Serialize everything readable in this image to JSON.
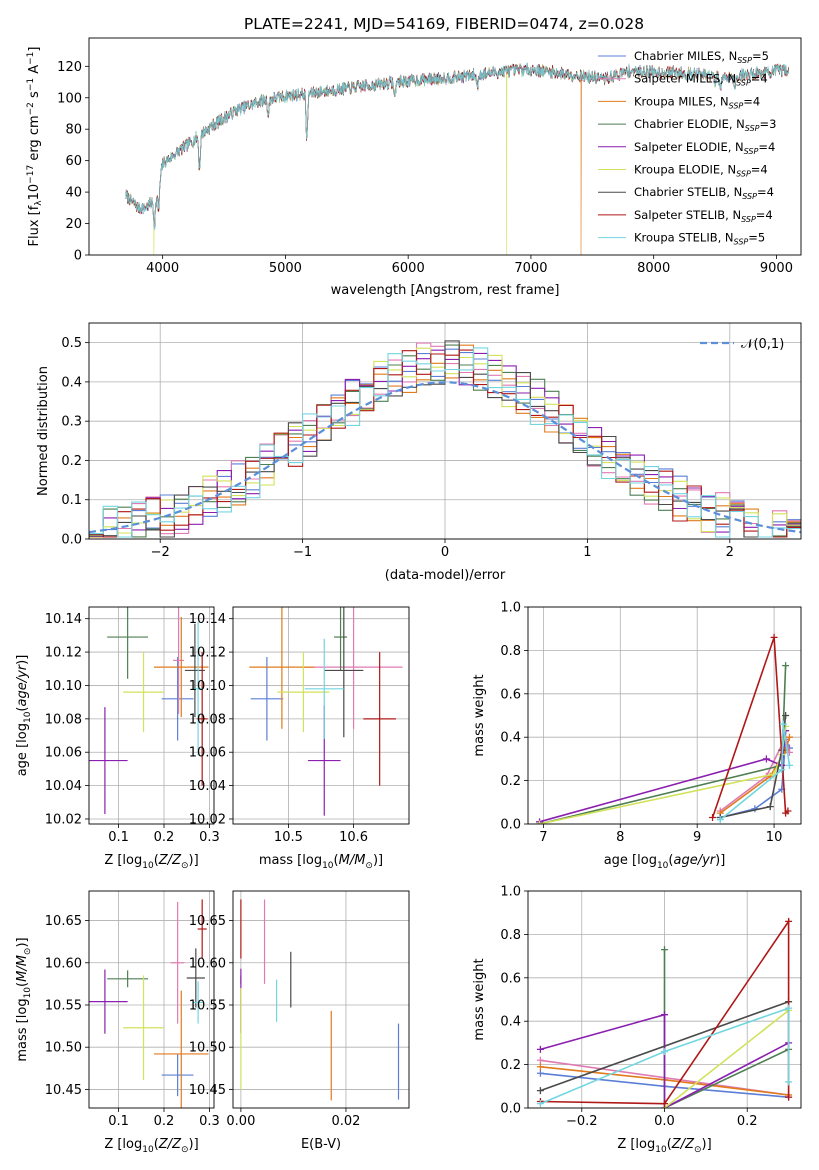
{
  "figure_title": "PLATE=2241, MJD=54169, FIBERID=0474, z=0.028",
  "models": [
    {
      "name": "Chabrier MILES",
      "n_ssp": 5,
      "color": "#5b7fd6"
    },
    {
      "name": "Salpeter MILES",
      "n_ssp": 4,
      "color": "#e07ab2"
    },
    {
      "name": "Kroupa MILES",
      "n_ssp": 4,
      "color": "#e07b1e"
    },
    {
      "name": "Chabrier ELODIE",
      "n_ssp": 3,
      "color": "#4e7f52"
    },
    {
      "name": "Salpeter ELODIE",
      "n_ssp": 4,
      "color": "#8b1fb0"
    },
    {
      "name": "Kroupa ELODIE",
      "n_ssp": 4,
      "color": "#d2e25a"
    },
    {
      "name": "Chabrier STELIB",
      "n_ssp": 4,
      "color": "#4a4a4a"
    },
    {
      "name": "Salpeter STELIB",
      "n_ssp": 4,
      "color": "#b01818"
    },
    {
      "name": "Kroupa STELIB",
      "n_ssp": 5,
      "color": "#72d6e0"
    }
  ],
  "chart_data": [
    {
      "id": "spectrum",
      "type": "line",
      "xlabel": "wavelength [Angstrom, rest frame]",
      "ylabel": "Flux [f_λ10^-17 erg cm^-2 s^-1 A^-1]",
      "xlim": [
        3400,
        9200
      ],
      "ylim": [
        0,
        138
      ],
      "xticks": [
        4000,
        5000,
        6000,
        7000,
        8000,
        9000
      ],
      "yticks": [
        0,
        20,
        40,
        60,
        80,
        100,
        120
      ],
      "grid": false,
      "legend": "upper right",
      "x_range": [
        3700,
        9100
      ],
      "continuum": [
        [
          3700,
          38
        ],
        [
          3800,
          30
        ],
        [
          3850,
          30
        ],
        [
          3950,
          35
        ],
        [
          4000,
          58
        ],
        [
          4200,
          70
        ],
        [
          4400,
          82
        ],
        [
          4600,
          92
        ],
        [
          4800,
          98
        ],
        [
          5000,
          101
        ],
        [
          5200,
          103
        ],
        [
          5500,
          106
        ],
        [
          5900,
          110
        ],
        [
          6200,
          112
        ],
        [
          6500,
          114
        ],
        [
          6800,
          117
        ],
        [
          7000,
          118
        ],
        [
          7200,
          116
        ],
        [
          7400,
          114
        ],
        [
          7600,
          112
        ],
        [
          7800,
          117
        ],
        [
          8200,
          116
        ],
        [
          8600,
          113
        ],
        [
          9100,
          118
        ]
      ],
      "absorption_features": [
        [
          3933,
          15
        ],
        [
          3968,
          14
        ],
        [
          4300,
          22
        ],
        [
          4861,
          10
        ],
        [
          5175,
          30
        ],
        [
          5890,
          10
        ],
        [
          6563,
          8
        ],
        [
          8500,
          6
        ],
        [
          8542,
          8
        ],
        [
          8662,
          7
        ]
      ],
      "noise_amplitude": 3.5,
      "dropouts": [
        {
          "model": "Kroupa ELODIE",
          "x": 3930
        },
        {
          "model": "Kroupa ELODIE",
          "x": 6800
        },
        {
          "model": "Kroupa MILES",
          "x": 7410
        }
      ]
    },
    {
      "id": "residuals",
      "type": "histogram",
      "xlabel": "(data-model)/error",
      "ylabel": "Normed distribution",
      "xlim": [
        -2.5,
        2.5
      ],
      "ylim": [
        0,
        0.55
      ],
      "xticks": [
        -2,
        -1,
        0,
        1,
        2
      ],
      "yticks": [
        0,
        0.1,
        0.2,
        0.3,
        0.4,
        0.5
      ],
      "grid": true,
      "reference_curve": {
        "name": "𝒩(0,1)",
        "mean": 0,
        "sigma": 1
      },
      "bin_width": 0.1,
      "jitter": 0.06
    },
    {
      "id": "age_vs_Z",
      "type": "errorbar",
      "xlabel": "Z [log10(Z/Z⊙)]",
      "ylabel": "age  [log10(age/yr)]",
      "xlim": [
        0.035,
        0.31
      ],
      "ylim": [
        10.017,
        10.147
      ],
      "xticks": [
        0.1,
        0.2,
        0.3
      ],
      "yticks": [
        10.02,
        10.04,
        10.06,
        10.08,
        10.1,
        10.12,
        10.14
      ],
      "grid": true,
      "points": [
        {
          "x": 0.23,
          "xerr": 0.035,
          "y": 10.092,
          "yerr": 0.025
        },
        {
          "x": 0.232,
          "xerr": 0.012,
          "y": 10.115,
          "yerr": 0.032
        },
        {
          "x": 0.238,
          "xerr": 0.06,
          "y": 10.111,
          "yerr": 0.03
        },
        {
          "x": 0.12,
          "xerr": 0.045,
          "y": 10.129,
          "yerr": 0.025
        },
        {
          "x": 0.07,
          "xerr": 0.05,
          "y": 10.055,
          "yerr": 0.032
        },
        {
          "x": 0.155,
          "xerr": 0.045,
          "y": 10.096,
          "yerr": 0.024
        },
        {
          "x": 0.268,
          "xerr": 0.022,
          "y": 10.109,
          "yerr": 0.028
        },
        {
          "x": 0.284,
          "xerr": 0.012,
          "y": 10.08,
          "yerr": 0.04
        },
        {
          "x": 0.275,
          "xerr": 0.01,
          "y": 10.098,
          "yerr": 0.04
        }
      ]
    },
    {
      "id": "age_vs_mass",
      "type": "errorbar",
      "xlabel": "mass [log10(M/M⊙)]",
      "ylabel": "",
      "xlim": [
        10.415,
        10.685
      ],
      "ylim": [
        10.017,
        10.147
      ],
      "xticks": [
        10.5,
        10.6
      ],
      "yticks": [
        10.02,
        10.04,
        10.06,
        10.08,
        10.1,
        10.12,
        10.14
      ],
      "grid": true,
      "points": [
        {
          "x": 10.467,
          "xerr": 0.025,
          "y": 10.092,
          "yerr": 0.025
        },
        {
          "x": 10.6,
          "xerr": 0.075,
          "y": 10.111,
          "yerr": 0.037
        },
        {
          "x": 10.49,
          "xerr": 0.05,
          "y": 10.111,
          "yerr": 0.037
        },
        {
          "x": 10.58,
          "xerr": 0.01,
          "y": 10.129,
          "yerr": 0.02
        },
        {
          "x": 10.555,
          "xerr": 0.025,
          "y": 10.055,
          "yerr": 0.033
        },
        {
          "x": 10.523,
          "xerr": 0.04,
          "y": 10.096,
          "yerr": 0.024
        },
        {
          "x": 10.585,
          "xerr": 0.03,
          "y": 10.109,
          "yerr": 0.04
        },
        {
          "x": 10.64,
          "xerr": 0.025,
          "y": 10.08,
          "yerr": 0.04
        },
        {
          "x": 10.555,
          "xerr": 0.03,
          "y": 10.098,
          "yerr": 0.03
        }
      ]
    },
    {
      "id": "mass_weight_vs_age",
      "type": "line",
      "xlabel": "age  [log10(age/yr)]",
      "ylabel": "mass weight",
      "xlim": [
        6.8,
        10.35
      ],
      "ylim": [
        0,
        1.0
      ],
      "xticks": [
        7,
        8,
        9,
        10
      ],
      "yticks": [
        0.0,
        0.2,
        0.4,
        0.6,
        0.8,
        1.0
      ],
      "grid": true,
      "series": [
        {
          "values": [
            [
              9.3,
              0.03
            ],
            [
              9.75,
              0.07
            ],
            [
              10.1,
              0.16
            ],
            [
              10.15,
              0.39
            ],
            [
              10.2,
              0.35
            ]
          ]
        },
        {
          "values": [
            [
              9.3,
              0.06
            ],
            [
              9.9,
              0.22
            ],
            [
              10.15,
              0.4
            ],
            [
              10.2,
              0.33
            ]
          ]
        },
        {
          "values": [
            [
              9.3,
              0.05
            ],
            [
              9.95,
              0.22
            ],
            [
              10.15,
              0.34
            ],
            [
              10.2,
              0.4
            ]
          ]
        },
        {
          "values": [
            [
              6.95,
              0.0
            ],
            [
              10.1,
              0.27
            ],
            [
              10.15,
              0.73
            ]
          ]
        },
        {
          "values": [
            [
              6.95,
              0.01
            ],
            [
              9.9,
              0.3
            ],
            [
              10.1,
              0.27
            ],
            [
              10.15,
              0.43
            ]
          ]
        },
        {
          "values": [
            [
              6.95,
              0.0
            ],
            [
              10.0,
              0.23
            ],
            [
              10.1,
              0.32
            ],
            [
              10.15,
              0.45
            ]
          ]
        },
        {
          "values": [
            [
              9.3,
              0.03
            ],
            [
              9.95,
              0.08
            ],
            [
              10.1,
              0.34
            ],
            [
              10.15,
              0.5
            ]
          ]
        },
        {
          "values": [
            [
              9.2,
              0.03
            ],
            [
              10.0,
              0.86
            ],
            [
              10.15,
              0.05
            ],
            [
              10.18,
              0.06
            ]
          ]
        },
        {
          "values": [
            [
              9.3,
              0.02
            ],
            [
              10.1,
              0.25
            ],
            [
              10.12,
              0.46
            ],
            [
              10.2,
              0.27
            ]
          ]
        }
      ]
    },
    {
      "id": "mass_vs_Z",
      "type": "errorbar",
      "xlabel": "Z [log10(Z/Z⊙)]",
      "ylabel": "mass [log10(M/M⊙)]",
      "xlim": [
        0.035,
        0.31
      ],
      "ylim": [
        10.428,
        10.685
      ],
      "xticks": [
        0.1,
        0.2,
        0.3
      ],
      "yticks": [
        10.45,
        10.5,
        10.55,
        10.6,
        10.65
      ],
      "grid": true,
      "points": [
        {
          "x": 0.23,
          "xerr": 0.035,
          "y": 10.467,
          "yerr": 0.025
        },
        {
          "x": 0.23,
          "xerr": 0.015,
          "y": 10.6,
          "yerr": 0.072
        },
        {
          "x": 0.238,
          "xerr": 0.06,
          "y": 10.492,
          "yerr": 0.075
        },
        {
          "x": 0.12,
          "xerr": 0.045,
          "y": 10.581,
          "yerr": 0.01
        },
        {
          "x": 0.07,
          "xerr": 0.05,
          "y": 10.554,
          "yerr": 0.038
        },
        {
          "x": 0.155,
          "xerr": 0.045,
          "y": 10.523,
          "yerr": 0.062
        },
        {
          "x": 0.27,
          "xerr": 0.02,
          "y": 10.582,
          "yerr": 0.035
        },
        {
          "x": 0.284,
          "xerr": 0.01,
          "y": 10.64,
          "yerr": 0.035
        },
        {
          "x": 0.275,
          "xerr": 0.012,
          "y": 10.553,
          "yerr": 0.025
        }
      ]
    },
    {
      "id": "mass_vs_EBV",
      "type": "errorbar",
      "xlabel": "E(B-V)",
      "ylabel": "",
      "xlim": [
        -0.0015,
        0.032
      ],
      "ylim": [
        10.428,
        10.685
      ],
      "xticks": [
        0.0,
        0.02
      ],
      "yticks": [
        10.45,
        10.5,
        10.55,
        10.6,
        10.65
      ],
      "grid": true,
      "points": [
        {
          "x": 0.03,
          "xerr": 0,
          "y": 10.483,
          "yerr": 0.045
        },
        {
          "x": 0.0045,
          "xerr": 0,
          "y": 10.625,
          "yerr": 0.05
        },
        {
          "x": 0.0172,
          "xerr": 0,
          "y": 10.49,
          "yerr": 0.053
        },
        {
          "x": 0.0,
          "xerr": 0,
          "y": 10.58,
          "yerr": 0.005
        },
        {
          "x": 0.0,
          "xerr": 0,
          "y": 10.555,
          "yerr": 0.038
        },
        {
          "x": 0.0,
          "xerr": 0,
          "y": 10.51,
          "yerr": 0.06
        },
        {
          "x": 0.0095,
          "xerr": 0,
          "y": 10.58,
          "yerr": 0.033
        },
        {
          "x": 0.0,
          "xerr": 0,
          "y": 10.64,
          "yerr": 0.035
        },
        {
          "x": 0.0068,
          "xerr": 0,
          "y": 10.555,
          "yerr": 0.025
        }
      ]
    },
    {
      "id": "mass_weight_vs_Z",
      "type": "line",
      "xlabel": "Z [log10(Z/Z⊙)]",
      "ylabel": "mass weight",
      "xlim": [
        -0.33,
        0.33
      ],
      "ylim": [
        0,
        1.0
      ],
      "xticks": [
        -0.2,
        0.0,
        0.2
      ],
      "yticks": [
        0.0,
        0.2,
        0.4,
        0.6,
        0.8,
        1.0
      ],
      "grid": true,
      "series": [
        {
          "values": [
            [
              -0.3,
              0.16
            ],
            [
              0.0,
              0.1
            ],
            [
              0.3,
              0.05
            ]
          ]
        },
        {
          "values": [
            [
              -0.3,
              0.22
            ],
            [
              0.3,
              0.06
            ]
          ]
        },
        {
          "values": [
            [
              -0.3,
              0.19
            ],
            [
              0.0,
              0.13
            ],
            [
              0.3,
              0.06
            ]
          ]
        },
        {
          "values": [
            [
              0.0,
              0.73
            ],
            [
              0.0,
              0.0
            ],
            [
              0.3,
              0.27
            ]
          ]
        },
        {
          "values": [
            [
              -0.3,
              0.27
            ],
            [
              0.0,
              0.43
            ],
            [
              0.0,
              0.0
            ],
            [
              0.3,
              0.3
            ]
          ]
        },
        {
          "values": [
            [
              0.0,
              0.0
            ],
            [
              0.3,
              0.45
            ]
          ]
        },
        {
          "values": [
            [
              -0.3,
              0.08
            ],
            [
              0.3,
              0.49
            ]
          ]
        },
        {
          "values": [
            [
              -0.3,
              0.03
            ],
            [
              0.0,
              0.02
            ],
            [
              0.3,
              0.86
            ],
            [
              0.3,
              0.05
            ]
          ]
        },
        {
          "values": [
            [
              -0.3,
              0.02
            ],
            [
              0.0,
              0.26
            ],
            [
              0.3,
              0.46
            ],
            [
              0.3,
              0.12
            ]
          ]
        }
      ]
    }
  ]
}
